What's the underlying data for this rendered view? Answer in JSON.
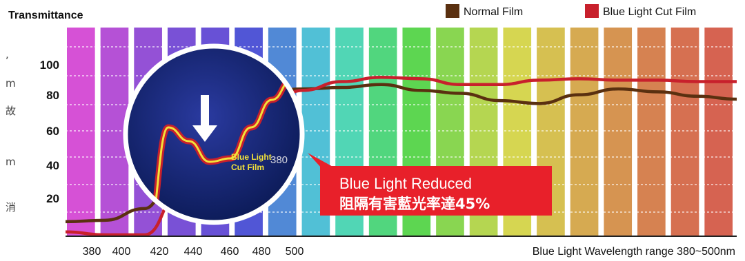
{
  "side_text": [
    ",",
    "m",
    "故",
    "m",
    "消"
  ],
  "chart_data": {
    "type": "line",
    "ylabel": "Transmittance",
    "xlabel": "Blue Light Wavelength range 380~500nm",
    "x_ticks": [
      "380",
      "400",
      "420",
      "440",
      "460",
      "480",
      "500"
    ],
    "y_ticks": [
      20,
      40,
      60,
      80,
      100
    ],
    "ylim": [
      -5,
      130
    ],
    "legend_position": "top-right",
    "grid": "dotted horizontal",
    "series": [
      {
        "name": "Normal Film",
        "color": "#5a3010",
        "values": [
          4,
          5,
          13,
          58,
          84,
          93,
          95,
          96,
          98,
          94,
          92,
          87,
          85,
          91,
          95,
          93,
          90,
          88
        ]
      },
      {
        "name": "Blue Light  Cut Film",
        "color": "#c8202c",
        "values": [
          -3,
          -5,
          -5,
          30,
          58,
          80,
          94,
          100,
          103,
          102,
          98,
          98,
          101,
          102,
          101,
          101,
          100,
          100
        ]
      }
    ],
    "magnifier": {
      "label_lines": [
        "Blue Light",
        "Cut Film"
      ],
      "tick": "380",
      "curve": [
        4,
        66,
        58,
        46,
        48,
        66,
        82,
        94
      ]
    },
    "callout": {
      "line1": "Blue Light Reduced",
      "line2": "阻隔有害藍光率達45%",
      "color": "#e8202a"
    }
  }
}
